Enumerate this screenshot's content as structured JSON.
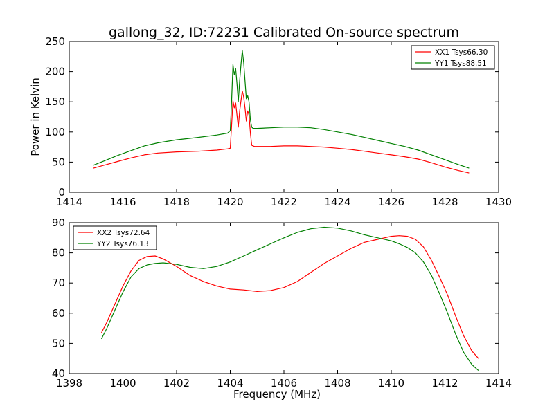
{
  "figure": {
    "title": "gallong_32, ID:72231 Calibrated On-source spectrum",
    "xlabel": "Frequency (MHz)"
  },
  "chart_data": [
    {
      "type": "line",
      "title": "gallong_32, ID:72231 Calibrated On-source spectrum",
      "xlabel": "",
      "ylabel": "Power in Kelvin",
      "xlim": [
        1414,
        1430
      ],
      "ylim": [
        0,
        250
      ],
      "xticks": [
        "1414",
        "1416",
        "1418",
        "1420",
        "1422",
        "1424",
        "1426",
        "1428",
        "1430"
      ],
      "yticks": [
        "0",
        "50",
        "100",
        "150",
        "200",
        "250"
      ],
      "legend_position": "top-right",
      "grid": false,
      "series": [
        {
          "name": "XX1 Tsys66.30",
          "color": "#ff0000",
          "x": [
            1414.9,
            1415.3,
            1415.8,
            1416.3,
            1416.8,
            1417.3,
            1418.0,
            1418.8,
            1419.5,
            1419.9,
            1420.0,
            1420.05,
            1420.1,
            1420.15,
            1420.2,
            1420.25,
            1420.3,
            1420.35,
            1420.4,
            1420.45,
            1420.5,
            1420.55,
            1420.6,
            1420.65,
            1420.7,
            1420.75,
            1420.8,
            1420.85,
            1420.9,
            1421.0,
            1421.5,
            1422.0,
            1422.5,
            1423.0,
            1423.5,
            1424.0,
            1424.5,
            1425.0,
            1425.5,
            1426.0,
            1426.5,
            1427.0,
            1427.5,
            1428.0,
            1428.5,
            1428.9
          ],
          "y": [
            40,
            45,
            51,
            57,
            62,
            65,
            67,
            68,
            70,
            72,
            73,
            110,
            152,
            140,
            148,
            128,
            108,
            135,
            152,
            168,
            158,
            140,
            118,
            135,
            128,
            98,
            78,
            77,
            76,
            76,
            76,
            77,
            77,
            76,
            75,
            73,
            71,
            68,
            65,
            62,
            59,
            55,
            49,
            42,
            36,
            32
          ]
        },
        {
          "name": "YY1 Tsys88.51",
          "color": "#008000",
          "x": [
            1414.9,
            1415.3,
            1415.8,
            1416.3,
            1416.8,
            1417.3,
            1418.0,
            1418.8,
            1419.5,
            1419.9,
            1420.0,
            1420.05,
            1420.1,
            1420.15,
            1420.2,
            1420.25,
            1420.3,
            1420.35,
            1420.4,
            1420.45,
            1420.5,
            1420.55,
            1420.6,
            1420.65,
            1420.7,
            1420.75,
            1420.8,
            1420.85,
            1420.9,
            1421.0,
            1421.5,
            1422.0,
            1422.5,
            1423.0,
            1423.5,
            1424.0,
            1424.5,
            1425.0,
            1425.5,
            1426.0,
            1426.5,
            1427.0,
            1427.5,
            1428.0,
            1428.5,
            1428.9
          ],
          "y": [
            45,
            52,
            61,
            69,
            77,
            82,
            87,
            91,
            95,
            98,
            102,
            150,
            212,
            195,
            205,
            180,
            150,
            185,
            212,
            235,
            215,
            185,
            155,
            160,
            150,
            120,
            108,
            106,
            106,
            106,
            107,
            108,
            108,
            107,
            104,
            100,
            96,
            91,
            86,
            81,
            76,
            70,
            62,
            54,
            46,
            40
          ]
        }
      ]
    },
    {
      "type": "line",
      "title": "",
      "xlabel": "Frequency (MHz)",
      "ylabel": "",
      "xlim": [
        1398,
        1414
      ],
      "ylim": [
        40,
        90
      ],
      "xticks": [
        "1398",
        "1400",
        "1402",
        "1404",
        "1406",
        "1408",
        "1410",
        "1412",
        "1414"
      ],
      "yticks": [
        "40",
        "50",
        "60",
        "70",
        "80",
        "90"
      ],
      "legend_position": "top-left",
      "grid": false,
      "series": [
        {
          "name": "XX2 Tsys72.64",
          "color": "#ff0000",
          "x": [
            1399.2,
            1399.4,
            1399.7,
            1400.0,
            1400.3,
            1400.6,
            1400.9,
            1401.2,
            1401.5,
            1402.0,
            1402.5,
            1403.0,
            1403.5,
            1404.0,
            1404.5,
            1405.0,
            1405.5,
            1406.0,
            1406.5,
            1407.0,
            1407.5,
            1408.0,
            1408.5,
            1409.0,
            1409.5,
            1410.0,
            1410.3,
            1410.6,
            1410.9,
            1411.2,
            1411.5,
            1411.8,
            1412.1,
            1412.4,
            1412.7,
            1413.0,
            1413.25
          ],
          "y": [
            53.5,
            57,
            63,
            69,
            74,
            77.5,
            78.8,
            79,
            78,
            75.5,
            72.5,
            70.5,
            69,
            68,
            67.7,
            67.2,
            67.5,
            68.5,
            70.5,
            73.5,
            76.5,
            79,
            81.5,
            83.5,
            84.5,
            85.5,
            85.7,
            85.5,
            84.5,
            82,
            77.5,
            72,
            66,
            59,
            52.5,
            47.5,
            45
          ]
        },
        {
          "name": "YY2 Tsys76.13",
          "color": "#008000",
          "x": [
            1399.2,
            1399.4,
            1399.7,
            1400.0,
            1400.3,
            1400.6,
            1400.9,
            1401.2,
            1401.5,
            1402.0,
            1402.5,
            1403.0,
            1403.5,
            1404.0,
            1404.5,
            1405.0,
            1405.5,
            1406.0,
            1406.5,
            1407.0,
            1407.5,
            1408.0,
            1408.5,
            1409.0,
            1409.5,
            1410.0,
            1410.3,
            1410.6,
            1410.9,
            1411.2,
            1411.5,
            1411.8,
            1412.1,
            1412.4,
            1412.7,
            1413.0,
            1413.25
          ],
          "y": [
            51.5,
            55,
            61,
            67,
            72,
            74.8,
            76,
            76.5,
            76.7,
            76.2,
            75.2,
            74.8,
            75.5,
            77,
            79,
            81,
            83,
            85,
            86.8,
            88,
            88.5,
            88.2,
            87.3,
            86,
            85,
            84,
            83,
            81.8,
            80,
            77,
            72.5,
            66.5,
            60,
            53,
            47,
            43,
            41
          ]
        }
      ]
    }
  ]
}
